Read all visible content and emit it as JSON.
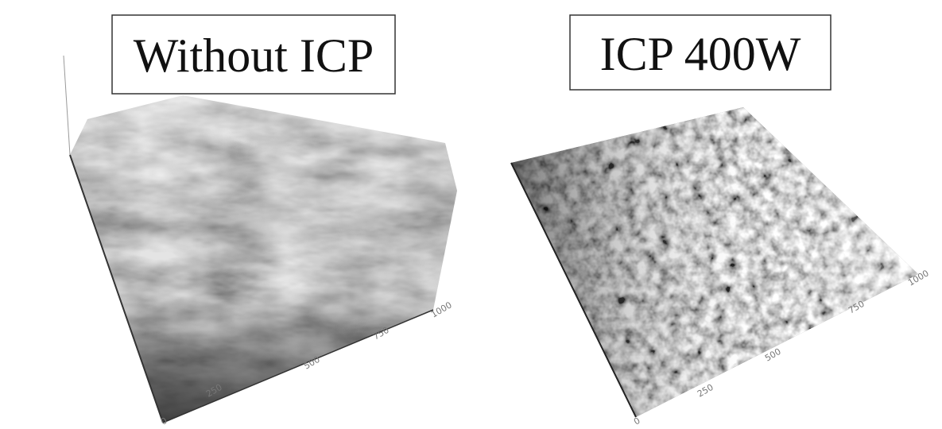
{
  "panels": [
    {
      "label": "Without ICP",
      "axis_labels": [
        "0",
        "250",
        "500",
        "750",
        "1000"
      ]
    },
    {
      "label": "ICP 400W",
      "axis_labels": [
        "0",
        "250",
        "500",
        "750",
        "1000"
      ]
    }
  ]
}
